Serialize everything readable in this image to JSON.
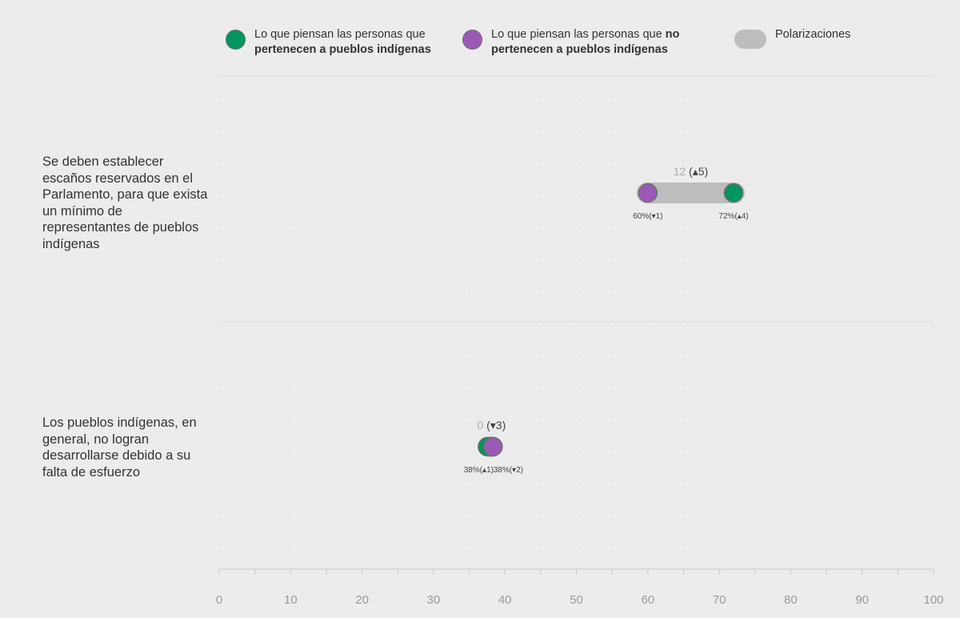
{
  "legend": {
    "indigenous": {
      "line1": "Lo que piensan las personas que",
      "line2_bold": "pertenecen a pueblos indígenas",
      "color": "#00965e"
    },
    "non_indigenous": {
      "line1_prefix": "Lo que piensan las personas que ",
      "line1_bold": "no",
      "line2_bold": "pertenecen a pueblos indígenas",
      "color": "#9b59b6"
    },
    "polarization": {
      "label": "Polarizaciones",
      "color": "#bdbdbd"
    }
  },
  "chart_data": {
    "type": "dumbbell",
    "xlim": [
      0,
      100
    ],
    "x_ticks": [
      "0",
      "10",
      "20",
      "30",
      "40",
      "50",
      "60",
      "70",
      "80",
      "90",
      "100"
    ],
    "rows": [
      {
        "label": "Se deben establecer escaños reservados en el Parlamento, para que exista un mínimo de representantes de pueblos indígenas",
        "indigenous_value": 72,
        "indigenous_label": "72%(▴4)",
        "non_indigenous_value": 60,
        "non_indigenous_label": "60%(▾1)",
        "gap_value": "12",
        "gap_change": "(▴5)"
      },
      {
        "label": "Los pueblos indígenas, en general, no logran desarrollarse debido a su falta de esfuerzo",
        "indigenous_value": 38,
        "indigenous_label": "38%(▴1)",
        "non_indigenous_value": 38,
        "non_indigenous_label": "38%(▾2)",
        "gap_value": "0",
        "gap_change": "(▾3)"
      }
    ]
  }
}
